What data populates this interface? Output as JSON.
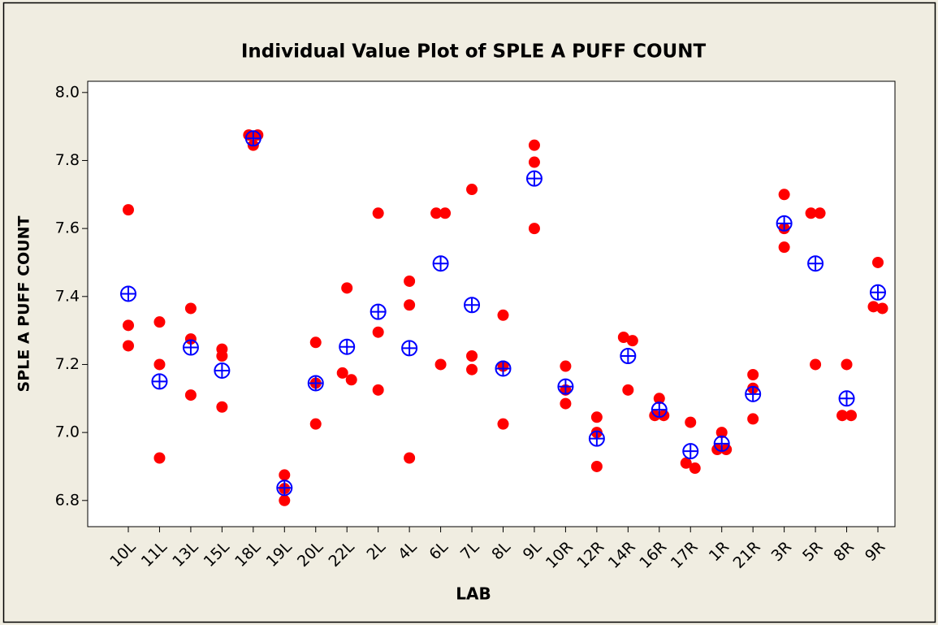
{
  "chart_data": {
    "type": "individual_value",
    "title": "Individual Value Plot of SPLE A PUFF COUNT",
    "x_label": "LAB",
    "y_label": "SPLE A PUFF COUNT",
    "categories": [
      "10L",
      "11L",
      "13L",
      "15L",
      "18L",
      "19L",
      "20L",
      "22L",
      "2L",
      "4L",
      "6L",
      "7L",
      "8L",
      "9L",
      "10R",
      "12R",
      "14R",
      "16R",
      "17R",
      "1R",
      "21R",
      "3R",
      "5R",
      "8R",
      "9R"
    ],
    "points": [
      [
        7.655,
        7.315,
        7.255
      ],
      [
        7.325,
        7.2,
        6.925
      ],
      [
        7.365,
        7.275,
        7.11
      ],
      [
        7.245,
        7.225,
        7.075
      ],
      [
        7.875,
        7.875,
        7.845
      ],
      [
        6.875,
        6.8,
        6.835
      ],
      [
        7.265,
        7.145,
        7.025
      ],
      [
        7.425,
        7.175,
        7.155
      ],
      [
        7.645,
        7.295,
        7.125
      ],
      [
        7.445,
        7.375,
        6.925
      ],
      [
        7.645,
        7.645,
        7.2
      ],
      [
        7.715,
        7.225,
        7.185
      ],
      [
        7.345,
        7.195,
        7.025
      ],
      [
        7.845,
        7.795,
        7.6
      ],
      [
        7.195,
        7.125,
        7.085
      ],
      [
        7.045,
        7.0,
        6.9
      ],
      [
        7.28,
        7.27,
        7.125
      ],
      [
        7.1,
        7.05,
        7.05
      ],
      [
        7.03,
        6.91,
        6.895
      ],
      [
        7.0,
        6.95,
        6.95
      ],
      [
        7.17,
        7.13,
        7.04
      ],
      [
        7.7,
        7.6,
        7.545
      ],
      [
        7.645,
        7.645,
        7.2
      ],
      [
        7.2,
        7.05,
        7.05
      ],
      [
        7.5,
        7.37,
        7.365
      ]
    ],
    "means": [
      7.408,
      7.15,
      7.25,
      7.182,
      7.865,
      6.837,
      7.145,
      7.252,
      7.355,
      7.248,
      7.497,
      7.375,
      7.188,
      7.747,
      7.135,
      6.982,
      7.225,
      7.067,
      6.945,
      6.967,
      7.113,
      7.615,
      7.497,
      7.1,
      7.412
    ],
    "point_color": "#ff0000",
    "mean_color": "#0000ff",
    "ylim": [
      6.723,
      8.033
    ],
    "yticks": [
      6.8,
      {
        "value": 7.0,
        "label": "7.0"
      },
      7.2,
      7.4,
      7.6,
      7.8,
      {
        "value": 8.0,
        "label": "8.0"
      }
    ]
  }
}
